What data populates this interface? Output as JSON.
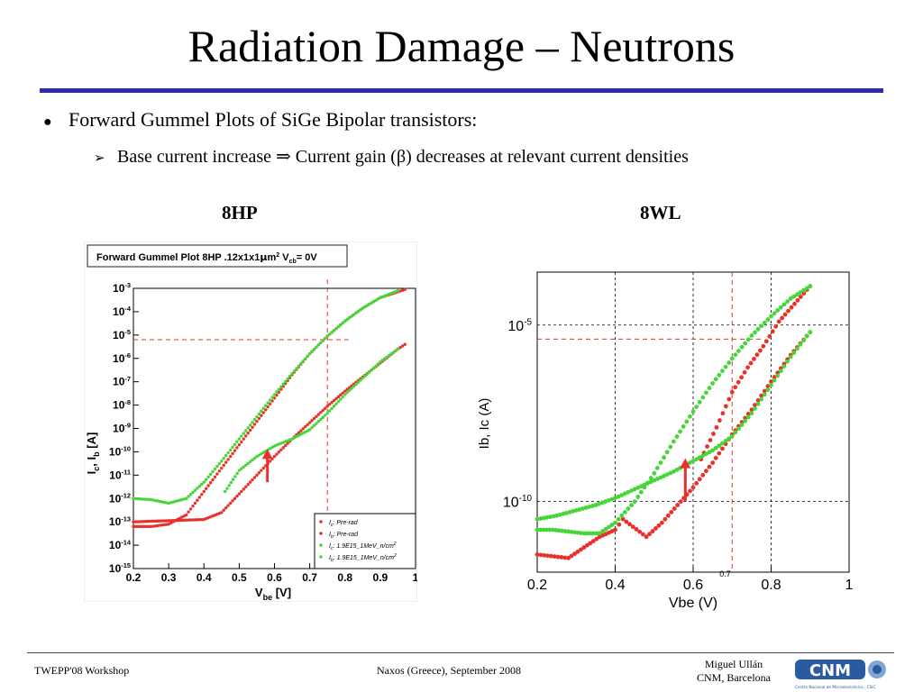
{
  "slide": {
    "title": "Radiation Damage – Neutrons",
    "bullet": "Forward Gummel Plots of SiGe Bipolar transistors:",
    "sub_bullet": "Base current increase ⇒ Current gain (β) decreases at relevant current densities",
    "bullet_icon": "filled-circle-icon",
    "sub_bullet_icon": "arrowhead-icon",
    "accent_color": "#2b2fa8"
  },
  "panels": {
    "left_heading": "8HP",
    "right_heading": "8WL"
  },
  "footer": {
    "left": "TWEPP'08 Workshop",
    "center": "Naxos (Greece), September 2008",
    "right_line1": "Miguel Ullán",
    "right_line2": "CNM, Barcelona",
    "logo_text": "CNM",
    "logo_caption": "Centro Nacional de Microelectrónica · CSIC",
    "logo_icon": "cnm-logo-icon"
  },
  "chart_data": [
    {
      "type": "scatter",
      "title": "Forward Gummel Plot 8HP  .12x1x1μm²  V_cb= 0V",
      "title_parts": {
        "main": "Forward Gummel Plot 8HP  .12x1x1",
        "mu": "μ",
        "m": "m",
        "sq": "2",
        "v": "  V",
        "cb": "cb",
        "tail": "= 0V"
      },
      "ylabel_parts": {
        "a": "I",
        "sa": "c",
        "b": ", I",
        "sb": "b",
        "c": " [A]"
      },
      "xlabel_parts": {
        "a": "V",
        "sa": "be",
        "b": " [V]"
      },
      "xlim": [
        0.2,
        1.0
      ],
      "ylim_log10": [
        -15,
        -3
      ],
      "x_ticks": [
        "0.2",
        "0.3",
        "0.4",
        "0.5",
        "0.6",
        "0.7",
        "0.8",
        "0.9",
        "1"
      ],
      "y_ticks": [
        {
          "base": "10",
          "exp": "-3"
        },
        {
          "base": "10",
          "exp": "-4"
        },
        {
          "base": "10",
          "exp": "-5"
        },
        {
          "base": "10",
          "exp": "-6"
        },
        {
          "base": "10",
          "exp": "-7"
        },
        {
          "base": "10",
          "exp": "-8"
        },
        {
          "base": "10",
          "exp": "-9"
        },
        {
          "base": "10",
          "exp": "-10"
        },
        {
          "base": "10",
          "exp": "-11"
        },
        {
          "base": "10",
          "exp": "-12"
        },
        {
          "base": "10",
          "exp": "-13"
        },
        {
          "base": "10",
          "exp": "-14"
        },
        {
          "base": "10",
          "exp": "-15"
        }
      ],
      "grid": false,
      "legend_position": "bottom-right",
      "legend": [
        {
          "sym": "I",
          "sub": "c",
          "rest": ": Pre-rad",
          "color": "#e8312a"
        },
        {
          "sym": "I",
          "sub": "b",
          "rest": ": Pre-rad",
          "color": "#e8312a"
        },
        {
          "sym": "I",
          "sub": "c",
          "rest": ": 1.9E15_1MeV_n/cm",
          "sup": "2",
          "color": "#46d63a"
        },
        {
          "sym": "I",
          "sub": "b",
          "rest": ": 1.9E15_1MeV_n/cm",
          "sup": "2",
          "color": "#46d63a"
        }
      ],
      "series": [
        {
          "name": "Ic: Pre-rad",
          "color": "#e8312a",
          "points": [
            [
              0.2,
              -13.2
            ],
            [
              0.25,
              -13.2
            ],
            [
              0.3,
              -13.1
            ],
            [
              0.35,
              -12.7
            ],
            [
              0.4,
              -11.7
            ],
            [
              0.45,
              -10.7
            ],
            [
              0.5,
              -9.7
            ],
            [
              0.55,
              -8.7
            ],
            [
              0.6,
              -7.7
            ],
            [
              0.65,
              -6.7
            ],
            [
              0.7,
              -5.8
            ],
            [
              0.75,
              -5.05
            ],
            [
              0.8,
              -4.4
            ],
            [
              0.85,
              -3.85
            ],
            [
              0.9,
              -3.4
            ],
            [
              0.95,
              -3.15
            ],
            [
              0.97,
              -3.05
            ]
          ]
        },
        {
          "name": "Ib: Pre-rad",
          "color": "#e8312a",
          "points": [
            [
              0.2,
              -13.0
            ],
            [
              0.3,
              -12.95
            ],
            [
              0.4,
              -12.9
            ],
            [
              0.45,
              -12.6
            ],
            [
              0.5,
              -11.8
            ],
            [
              0.55,
              -11.0
            ],
            [
              0.6,
              -10.2
            ],
            [
              0.65,
              -9.45
            ],
            [
              0.7,
              -8.75
            ],
            [
              0.75,
              -8.05
            ],
            [
              0.8,
              -7.4
            ],
            [
              0.85,
              -6.8
            ],
            [
              0.9,
              -6.2
            ],
            [
              0.95,
              -5.6
            ],
            [
              0.97,
              -5.4
            ]
          ]
        },
        {
          "name": "Ic: 1.9E15_1MeV_n/cm2",
          "color": "#46d63a",
          "points": [
            [
              0.2,
              -12.0
            ],
            [
              0.25,
              -12.05
            ],
            [
              0.3,
              -12.2
            ],
            [
              0.35,
              -12.0
            ],
            [
              0.4,
              -11.3
            ],
            [
              0.45,
              -10.4
            ],
            [
              0.5,
              -9.45
            ],
            [
              0.55,
              -8.5
            ],
            [
              0.6,
              -7.55
            ],
            [
              0.65,
              -6.65
            ],
            [
              0.7,
              -5.8
            ],
            [
              0.75,
              -5.05
            ],
            [
              0.8,
              -4.4
            ],
            [
              0.85,
              -3.85
            ],
            [
              0.9,
              -3.4
            ],
            [
              0.95,
              -3.1
            ]
          ]
        },
        {
          "name": "Ib: 1.9E15_1MeV_n/cm2",
          "color": "#46d63a",
          "points": [
            [
              0.46,
              -11.7
            ],
            [
              0.5,
              -10.8
            ],
            [
              0.55,
              -10.2
            ],
            [
              0.6,
              -9.75
            ],
            [
              0.65,
              -9.45
            ],
            [
              0.7,
              -9.05
            ],
            [
              0.75,
              -8.35
            ],
            [
              0.8,
              -7.55
            ],
            [
              0.85,
              -6.85
            ],
            [
              0.9,
              -6.15
            ],
            [
              0.95,
              -5.6
            ]
          ]
        }
      ],
      "reference_vline_x": 0.75,
      "reference_hline_y_log10": -5.2,
      "arrow_at": {
        "x": 0.58,
        "from_log10": -11.3,
        "to_log10": -10.0
      }
    },
    {
      "type": "scatter",
      "xlabel": "Vbe (V)",
      "ylabel": "Ib, Ic (A)",
      "xlim": [
        0.2,
        1.0
      ],
      "ylim_log10": [
        -12,
        -3.5
      ],
      "x_ticks": [
        "0.2",
        "0.4",
        "0.6",
        "0.8",
        "1"
      ],
      "extra_x_tick": "0.7",
      "y_ticks": [
        {
          "base": "10",
          "exp": "-5",
          "value_log10": -5
        },
        {
          "base": "10",
          "exp": "-10",
          "value_log10": -10
        }
      ],
      "grid": true,
      "series": [
        {
          "name": "Ic pre-rad",
          "color": "#e8312a",
          "points": [
            [
              0.2,
              -11.5
            ],
            [
              0.28,
              -11.6
            ],
            [
              0.32,
              -11.3
            ],
            [
              0.36,
              -11.0
            ],
            [
              0.4,
              -10.8
            ],
            [
              0.42,
              -10.5
            ],
            [
              0.48,
              -11.0
            ],
            [
              0.52,
              -10.6
            ],
            [
              0.56,
              -10.1
            ],
            [
              0.6,
              -9.6
            ],
            [
              0.65,
              -8.9
            ],
            [
              0.7,
              -8.1
            ],
            [
              0.75,
              -7.4
            ],
            [
              0.8,
              -6.6
            ],
            [
              0.85,
              -5.85
            ],
            [
              0.9,
              -5.2
            ]
          ]
        },
        {
          "name": "Ib pre-rad",
          "color": "#e8312a",
          "points": [
            [
              0.62,
              -8.8
            ],
            [
              0.66,
              -7.9
            ],
            [
              0.7,
              -6.9
            ],
            [
              0.74,
              -6.2
            ],
            [
              0.78,
              -5.6
            ],
            [
              0.82,
              -4.9
            ],
            [
              0.86,
              -4.4
            ],
            [
              0.9,
              -3.9
            ]
          ]
        },
        {
          "name": "Ic 1.9E15",
          "color": "#46d63a",
          "points": [
            [
              0.2,
              -10.8
            ],
            [
              0.24,
              -10.8
            ],
            [
              0.28,
              -10.85
            ],
            [
              0.32,
              -10.9
            ],
            [
              0.36,
              -10.9
            ],
            [
              0.4,
              -10.6
            ],
            [
              0.45,
              -10.0
            ],
            [
              0.5,
              -9.2
            ],
            [
              0.55,
              -8.3
            ],
            [
              0.6,
              -7.45
            ],
            [
              0.65,
              -6.65
            ],
            [
              0.7,
              -5.95
            ],
            [
              0.75,
              -5.3
            ],
            [
              0.8,
              -4.75
            ],
            [
              0.85,
              -4.25
            ],
            [
              0.9,
              -3.9
            ]
          ]
        },
        {
          "name": "Ib 1.9E15",
          "color": "#46d63a",
          "points": [
            [
              0.2,
              -10.5
            ],
            [
              0.25,
              -10.4
            ],
            [
              0.3,
              -10.25
            ],
            [
              0.35,
              -10.1
            ],
            [
              0.4,
              -9.9
            ],
            [
              0.45,
              -9.65
            ],
            [
              0.5,
              -9.4
            ],
            [
              0.55,
              -9.15
            ],
            [
              0.6,
              -8.85
            ],
            [
              0.65,
              -8.55
            ],
            [
              0.7,
              -8.15
            ],
            [
              0.75,
              -7.5
            ],
            [
              0.8,
              -6.7
            ],
            [
              0.85,
              -5.9
            ],
            [
              0.9,
              -5.2
            ]
          ]
        }
      ],
      "reference_vline_x": 0.7,
      "reference_hline_y_log10": -5.4,
      "arrow_at": {
        "x": 0.58,
        "from_log10": -10.0,
        "to_log10": -8.85
      }
    }
  ]
}
